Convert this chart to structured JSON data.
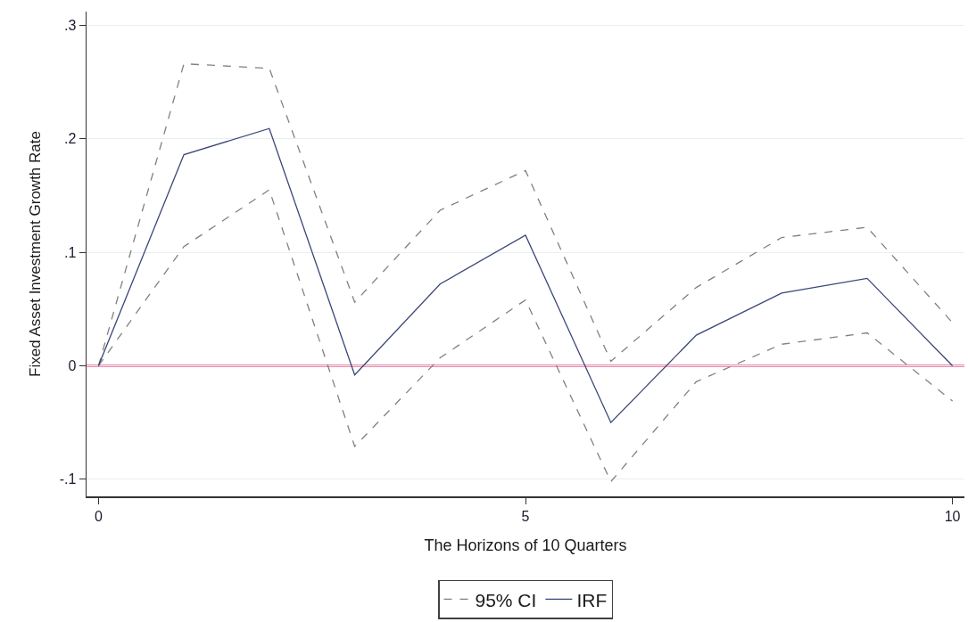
{
  "chart_data": {
    "type": "line",
    "xlabel": "The Horizons of 10 Quarters",
    "ylabel": "Fixed Asset Investment Growth Rate",
    "x": [
      0,
      1,
      2,
      3,
      4,
      5,
      6,
      7,
      8,
      9,
      10
    ],
    "series": [
      {
        "name": "95% CI",
        "color": "#808080",
        "line_style": "dashed",
        "values": [
          0,
          0.266,
          0.262,
          0.056,
          0.137,
          0.172,
          0.004,
          0.069,
          0.113,
          0.122,
          0.038
        ]
      },
      {
        "color": "#808080",
        "line_style": "dashed",
        "values": [
          0,
          0.105,
          0.155,
          -0.071,
          0.007,
          0.058,
          -0.102,
          -0.014,
          0.019,
          0.029,
          -0.031
        ]
      },
      {
        "name": "IRF",
        "color": "#3a4678",
        "values": [
          0,
          0.186,
          0.209,
          -0.008,
          0.072,
          0.115,
          -0.05,
          0.027,
          0.064,
          0.077,
          0
        ]
      }
    ],
    "xlim": [
      -0.14,
      10.14
    ],
    "xticks": [
      0,
      5,
      10
    ],
    "ylim": [
      -0.115,
      0.312
    ],
    "yticks": [
      {
        "value": -0.1,
        "label": "-.1"
      },
      0,
      {
        "value": 0.1,
        "label": ".1"
      },
      {
        "value": 0.2,
        "label": ".2"
      },
      {
        "value": 0.3,
        "label": ".3"
      }
    ],
    "ref_lines": [
      {
        "axis": "y",
        "value": 0,
        "color": "#e8195a"
      }
    ],
    "grid": "y",
    "legend": "bottom",
    "line_style": "solid"
  }
}
